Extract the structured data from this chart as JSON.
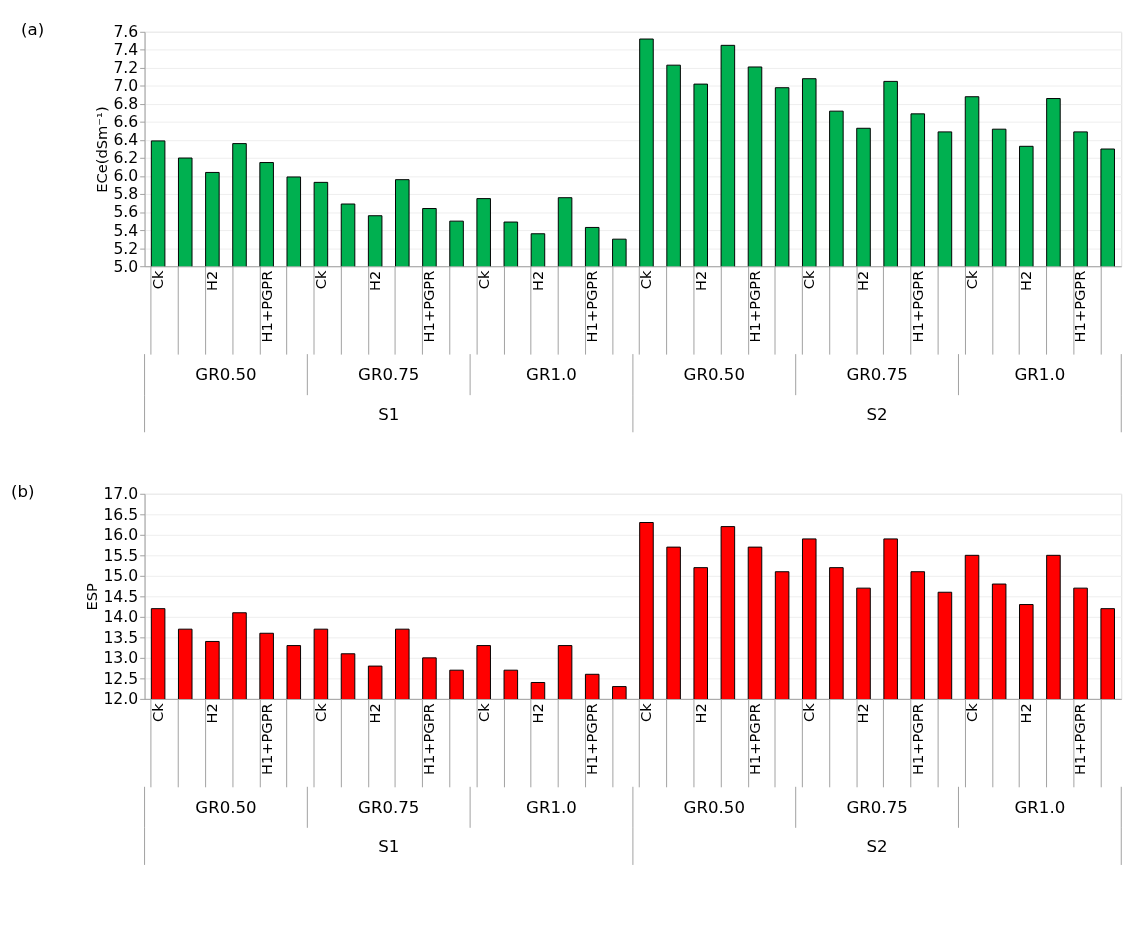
{
  "chart_data": [
    {
      "type": "bar",
      "title": "(a)",
      "ylabel": "ECe(dSm⁻¹)",
      "categories": [
        "Ck",
        null,
        "H2",
        null,
        "H1+PGPR",
        null,
        "Ck",
        null,
        "H2",
        null,
        "H1+PGPR",
        null,
        "Ck",
        null,
        "H2",
        null,
        "H1+PGPR",
        null,
        "Ck",
        null,
        "H2",
        null,
        "H1+PGPR",
        null,
        "Ck",
        null,
        "H2",
        null,
        "H1+PGPR",
        null,
        "Ck",
        null,
        "H2",
        null,
        "H1+PGPR",
        null
      ],
      "series": [
        {
          "color": "#00b050",
          "values": [
            6.39,
            6.2,
            6.04,
            6.36,
            6.15,
            5.99,
            5.93,
            5.69,
            5.56,
            5.96,
            5.64,
            5.5,
            5.75,
            5.49,
            5.36,
            5.76,
            5.43,
            5.3,
            7.52,
            7.23,
            7.02,
            7.45,
            7.21,
            6.98,
            7.08,
            6.72,
            6.53,
            7.05,
            6.69,
            6.49,
            6.88,
            6.52,
            6.33,
            6.86,
            6.49,
            6.3
          ]
        }
      ],
      "ylim": [
        5.0,
        7.6
      ],
      "yticks": [
        {
          "value": 5.0,
          "label": "5.0"
        },
        5.2,
        5.4,
        5.6,
        5.8,
        {
          "value": 6.0,
          "label": "6.0"
        },
        6.2,
        6.4,
        6.6,
        6.8,
        {
          "value": 7.0,
          "label": "7.0"
        },
        7.2,
        7.4,
        7.6
      ],
      "grid": "y",
      "legend": false,
      "annotations": [
        "GR0.50",
        "GR0.75",
        "GR1.0",
        "GR0.50",
        "GR0.75",
        "GR1.0",
        "S1",
        "S2"
      ]
    },
    {
      "type": "bar",
      "title": "(b)",
      "ylabel": "ESP",
      "categories": [
        "Ck",
        null,
        "H2",
        null,
        "H1+PGPR",
        null,
        "Ck",
        null,
        "H2",
        null,
        "H1+PGPR",
        null,
        "Ck",
        null,
        "H2",
        null,
        "H1+PGPR",
        null,
        "Ck",
        null,
        "H2",
        null,
        "H1+PGPR",
        null,
        "Ck",
        null,
        "H2",
        null,
        "H1+PGPR",
        null,
        "Ck",
        null,
        "H2",
        null,
        "H1+PGPR",
        null
      ],
      "series": [
        {
          "color": "#ff0000",
          "values": [
            14.2,
            13.7,
            13.4,
            14.1,
            13.6,
            13.3,
            13.7,
            13.1,
            12.8,
            13.7,
            13.0,
            12.7,
            13.3,
            12.7,
            12.4,
            13.3,
            12.6,
            12.3,
            16.3,
            15.7,
            15.2,
            16.2,
            15.7,
            15.1,
            15.9,
            15.2,
            14.7,
            15.9,
            15.1,
            14.6,
            15.5,
            14.8,
            14.3,
            15.5,
            14.7,
            14.2
          ]
        }
      ],
      "ylim": [
        12.0,
        17.0
      ],
      "yticks": [
        {
          "value": 12.0,
          "label": "12.0"
        },
        12.5,
        {
          "value": 13.0,
          "label": "13.0"
        },
        13.5,
        {
          "value": 14.0,
          "label": "14.0"
        },
        14.5,
        {
          "value": 15.0,
          "label": "15.0"
        },
        15.5,
        {
          "value": 16.0,
          "label": "16.0"
        },
        16.5,
        {
          "value": 17.0,
          "label": "17.0"
        }
      ],
      "grid": "y",
      "legend": false,
      "annotations": [
        "GR0.50",
        "GR0.75",
        "GR1.0",
        "GR0.50",
        "GR0.75",
        "GR1.0",
        "S1",
        "S2"
      ]
    }
  ]
}
